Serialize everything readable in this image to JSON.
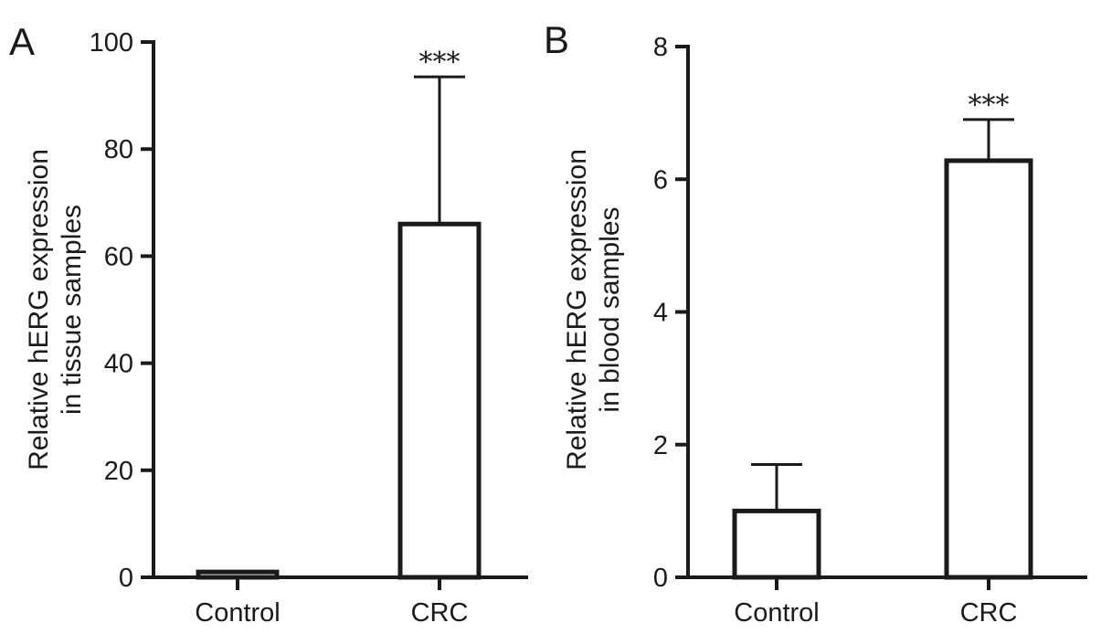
{
  "chart_data": [
    {
      "type": "bar",
      "panel": "A",
      "categories": [
        "Control",
        "CRC"
      ],
      "values": [
        1,
        66
      ],
      "error_upper": [
        0,
        27.5
      ],
      "annotations": [
        "",
        "***"
      ],
      "ylabel": [
        "Relative hERG expression",
        "in tissue samples"
      ],
      "xlabel": "",
      "ylim": [
        0,
        100
      ],
      "yticks": [
        0,
        20,
        40,
        60,
        80,
        100
      ],
      "grid": false
    },
    {
      "type": "bar",
      "panel": "B",
      "categories": [
        "Control",
        "CRC"
      ],
      "values": [
        1,
        6.28
      ],
      "error_upper": [
        0.7,
        0.62
      ],
      "annotations": [
        "",
        "***"
      ],
      "ylabel": [
        "Relative hERG expression",
        "in blood samples"
      ],
      "xlabel": "",
      "ylim": [
        0,
        8
      ],
      "yticks": [
        0,
        2,
        4,
        6,
        8
      ],
      "grid": false
    }
  ]
}
